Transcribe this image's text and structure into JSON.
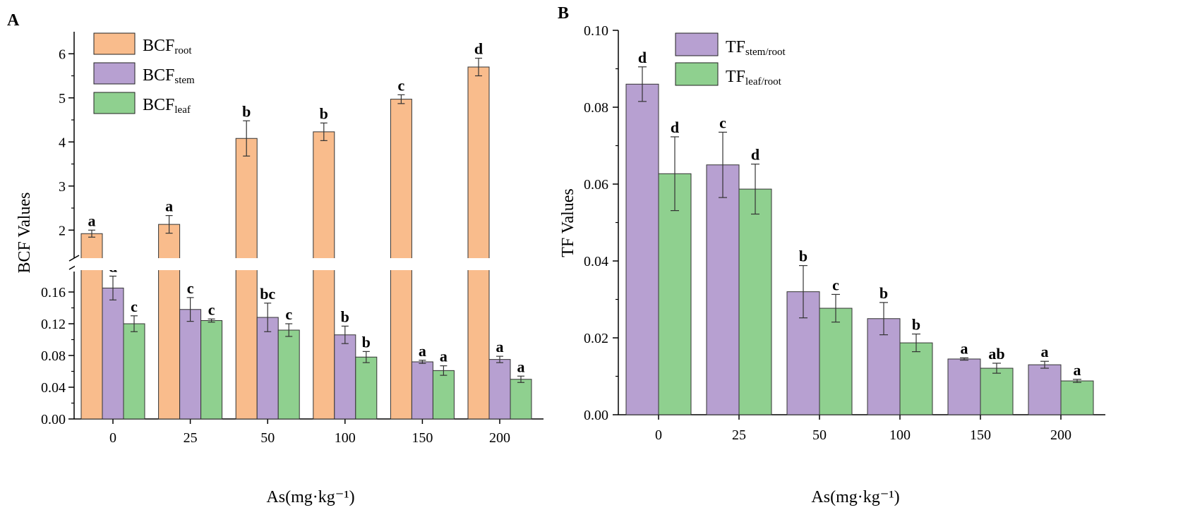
{
  "chart_data": [
    {
      "panel": "A",
      "type": "bar",
      "xlabel": "As(mg·kg⁻¹)",
      "ylabel": "BCF Values",
      "categories": [
        "0",
        "25",
        "50",
        "100",
        "150",
        "200"
      ],
      "ylim_lower": [
        0,
        0.19
      ],
      "ylim_upper": [
        1.5,
        6.5
      ],
      "yticks_lower": [
        "0.00",
        "0.04",
        "0.08",
        "0.12",
        "0.16"
      ],
      "yticks_upper": [
        "2",
        "3",
        "4",
        "5",
        "6"
      ],
      "legend_position": "top-left",
      "series": [
        {
          "name": "BCF",
          "sub": "root",
          "color": "#F9BC8C",
          "values": [
            1.92,
            2.13,
            4.08,
            4.23,
            4.97,
            5.7
          ],
          "errors": [
            0.08,
            0.2,
            0.4,
            0.2,
            0.1,
            0.2
          ],
          "letters": [
            "a",
            "a",
            "b",
            "b",
            "c",
            "d"
          ]
        },
        {
          "name": "BCF",
          "sub": "stem",
          "color": "#B7A0D1",
          "values": [
            0.165,
            0.138,
            0.128,
            0.106,
            0.072,
            0.075
          ],
          "errors": [
            0.015,
            0.015,
            0.018,
            0.011,
            0.002,
            0.004
          ],
          "letters": [
            "d",
            "c",
            "bc",
            "b",
            "a",
            "a"
          ]
        },
        {
          "name": "BCF",
          "sub": "leaf",
          "color": "#8FD08F",
          "values": [
            0.12,
            0.124,
            0.112,
            0.078,
            0.061,
            0.05
          ],
          "errors": [
            0.01,
            0.002,
            0.008,
            0.007,
            0.006,
            0.004
          ],
          "letters": [
            "c",
            "c",
            "c",
            "b",
            "a",
            "a"
          ]
        }
      ]
    },
    {
      "panel": "B",
      "type": "bar",
      "xlabel": "As(mg·kg⁻¹)",
      "ylabel": "TF Values",
      "categories": [
        "0",
        "25",
        "50",
        "100",
        "150",
        "200"
      ],
      "ylim": [
        0,
        0.1
      ],
      "yticks": [
        "0.00",
        "0.02",
        "0.04",
        "0.06",
        "0.08",
        "0.10"
      ],
      "legend_position": "top-center",
      "series": [
        {
          "name": "TF",
          "sub": "stem/root",
          "color": "#B7A0D1",
          "values": [
            0.086,
            0.065,
            0.032,
            0.025,
            0.0145,
            0.013
          ],
          "errors": [
            0.0045,
            0.0085,
            0.0068,
            0.0042,
            0.0003,
            0.0009
          ],
          "letters": [
            "d",
            "c",
            "b",
            "b",
            "a",
            "a"
          ]
        },
        {
          "name": "TF",
          "sub": "leaf/root",
          "color": "#8FD08F",
          "values": [
            0.0627,
            0.0587,
            0.0277,
            0.0187,
            0.0121,
            0.0088
          ],
          "errors": [
            0.0096,
            0.0065,
            0.0036,
            0.0023,
            0.0013,
            0.0004
          ],
          "letters": [
            "d",
            "d",
            "c",
            "b",
            "ab",
            "a"
          ]
        }
      ]
    }
  ]
}
